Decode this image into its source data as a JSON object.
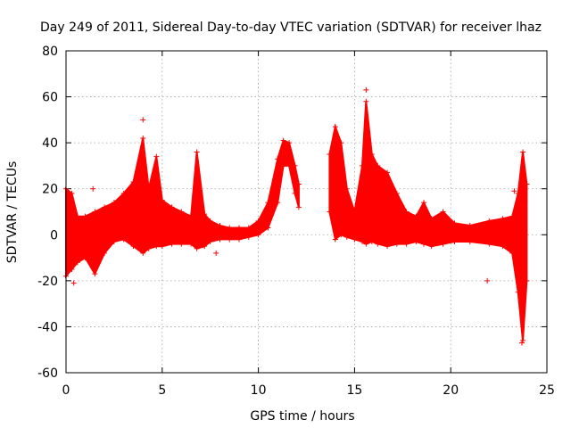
{
  "chart_data": {
    "type": "scatter",
    "title": "Day 249 of 2011, Sidereal Day-to-day VTEC variation (SDTVAR) for receiver lhaz",
    "xlabel": "GPS time / hours",
    "ylabel": "SDTVAR / TECUs",
    "xlim": [
      0,
      25
    ],
    "ylim": [
      -60,
      80
    ],
    "xticks": [
      0,
      5,
      10,
      15,
      20,
      25
    ],
    "yticks": [
      -60,
      -40,
      -20,
      0,
      20,
      40,
      60,
      80
    ],
    "grid": true,
    "marker": "+",
    "color": "#ff0000",
    "series": [
      {
        "name": "SDTVAR",
        "envelope": [
          {
            "x": 0.0,
            "lo": -18,
            "hi": 20
          },
          {
            "x": 0.3,
            "lo": -15,
            "hi": 18
          },
          {
            "x": 0.6,
            "lo": -12,
            "hi": 8
          },
          {
            "x": 1.0,
            "lo": -10,
            "hi": 8
          },
          {
            "x": 1.5,
            "lo": -17,
            "hi": 10
          },
          {
            "x": 2.0,
            "lo": -8,
            "hi": 12
          },
          {
            "x": 2.5,
            "lo": -3,
            "hi": 14
          },
          {
            "x": 3.0,
            "lo": -2,
            "hi": 18
          },
          {
            "x": 3.5,
            "lo": -5,
            "hi": 23
          },
          {
            "x": 4.0,
            "lo": -8,
            "hi": 42
          },
          {
            "x": 4.3,
            "lo": -6,
            "hi": 20
          },
          {
            "x": 4.7,
            "lo": -5,
            "hi": 34
          },
          {
            "x": 5.0,
            "lo": -5,
            "hi": 15
          },
          {
            "x": 5.5,
            "lo": -4,
            "hi": 12
          },
          {
            "x": 6.0,
            "lo": -4,
            "hi": 10
          },
          {
            "x": 6.5,
            "lo": -4,
            "hi": 8
          },
          {
            "x": 6.8,
            "lo": -6,
            "hi": 36
          },
          {
            "x": 7.2,
            "lo": -5,
            "hi": 9
          },
          {
            "x": 7.5,
            "lo": -3,
            "hi": 6
          },
          {
            "x": 8.0,
            "lo": -2,
            "hi": 4
          },
          {
            "x": 8.5,
            "lo": -2,
            "hi": 3
          },
          {
            "x": 9.0,
            "lo": -2,
            "hi": 3
          },
          {
            "x": 9.5,
            "lo": -1,
            "hi": 3
          },
          {
            "x": 10.0,
            "lo": 0,
            "hi": 6
          },
          {
            "x": 10.5,
            "lo": 3,
            "hi": 14
          },
          {
            "x": 11.0,
            "lo": 14,
            "hi": 33
          },
          {
            "x": 11.3,
            "lo": 30,
            "hi": 41
          },
          {
            "x": 11.6,
            "lo": 30,
            "hi": 40
          },
          {
            "x": 11.9,
            "lo": 18,
            "hi": 30
          },
          {
            "x": 12.1,
            "lo": 12,
            "hi": 22
          },
          {
            "x": 13.7,
            "lo": 10,
            "hi": 35
          },
          {
            "x": 14.0,
            "lo": -2,
            "hi": 47
          },
          {
            "x": 14.3,
            "lo": 0,
            "hi": 40
          },
          {
            "x": 14.6,
            "lo": -1,
            "hi": 20
          },
          {
            "x": 15.0,
            "lo": -2,
            "hi": 10
          },
          {
            "x": 15.4,
            "lo": -3,
            "hi": 30
          },
          {
            "x": 15.6,
            "lo": -4,
            "hi": 58
          },
          {
            "x": 15.9,
            "lo": -3,
            "hi": 35
          },
          {
            "x": 16.2,
            "lo": -4,
            "hi": 30
          },
          {
            "x": 16.7,
            "lo": -5,
            "hi": 27
          },
          {
            "x": 17.2,
            "lo": -4,
            "hi": 18
          },
          {
            "x": 17.7,
            "lo": -4,
            "hi": 10
          },
          {
            "x": 18.2,
            "lo": -3,
            "hi": 8
          },
          {
            "x": 18.6,
            "lo": -4,
            "hi": 14
          },
          {
            "x": 19.0,
            "lo": -5,
            "hi": 7
          },
          {
            "x": 19.6,
            "lo": -4,
            "hi": 10
          },
          {
            "x": 20.2,
            "lo": -3,
            "hi": 5
          },
          {
            "x": 21.0,
            "lo": -3,
            "hi": 4
          },
          {
            "x": 22.0,
            "lo": -4,
            "hi": 6
          },
          {
            "x": 22.7,
            "lo": -5,
            "hi": 7
          },
          {
            "x": 23.2,
            "lo": -8,
            "hi": 8
          },
          {
            "x": 23.5,
            "lo": -25,
            "hi": 18
          },
          {
            "x": 23.75,
            "lo": -46,
            "hi": 36
          },
          {
            "x": 23.95,
            "lo": -20,
            "hi": 22
          }
        ],
        "outliers": [
          {
            "x": 1.4,
            "y": 20
          },
          {
            "x": 4.0,
            "y": 50
          },
          {
            "x": 15.6,
            "y": 63
          },
          {
            "x": 21.9,
            "y": -20
          },
          {
            "x": 23.7,
            "y": -47
          },
          {
            "x": 0.4,
            "y": -21
          },
          {
            "x": 7.8,
            "y": -8
          },
          {
            "x": 23.3,
            "y": 19
          }
        ]
      }
    ]
  }
}
